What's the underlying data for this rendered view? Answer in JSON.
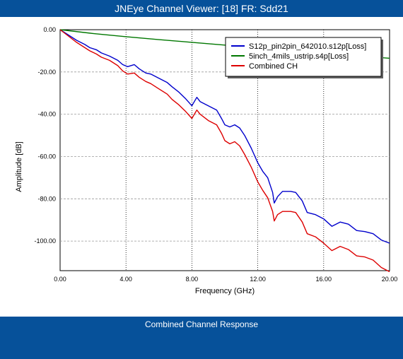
{
  "window": {
    "title": "JNEye Channel Viewer: [18] FR: Sdd21"
  },
  "footer": {
    "label": "Combined Channel Response"
  },
  "colors": {
    "bar_background": "#06519a",
    "bar_text": "#ffffff"
  },
  "chart_data": {
    "type": "line",
    "title": "",
    "xlabel": "Frequency (GHz)",
    "ylabel": "Amplitude [dB]",
    "xlim": [
      0,
      20
    ],
    "ylim": [
      -114,
      0
    ],
    "x_ticks": [
      0,
      4,
      8,
      12,
      16,
      20
    ],
    "x_tick_labels": [
      "0.00",
      "4.00",
      "8.00",
      "12.00",
      "16.00",
      "20.00"
    ],
    "y_ticks": [
      0,
      -20,
      -40,
      -60,
      -80,
      -100
    ],
    "y_tick_labels": [
      "0.00",
      "-20.00",
      "-40.00",
      "-60.00",
      "-80.00",
      "-100.00"
    ],
    "grid": {
      "vertical": "dotted",
      "horizontal": "dashed"
    },
    "legend_position": "top-right",
    "series": [
      {
        "name": "S12p_pin2pin_642010.s12p[Loss]",
        "color": "#0000cc",
        "x": [
          0,
          0.5,
          1,
          1.5,
          1.8,
          2.2,
          2.5,
          3,
          3.5,
          3.8,
          4.1,
          4.5,
          4.8,
          5.2,
          5.5,
          6,
          6.5,
          6.8,
          7.2,
          7.6,
          8,
          8.3,
          8.5,
          9,
          9.5,
          9.8,
          10,
          10.3,
          10.6,
          10.9,
          11.2,
          11.6,
          12,
          12.3,
          12.6,
          12.9,
          13,
          13.2,
          13.5,
          14,
          14.3,
          14.7,
          15,
          15.5,
          16,
          16.5,
          17,
          17.5,
          18,
          18.5,
          19,
          19.5,
          20
        ],
        "y": [
          0,
          -2.5,
          -5,
          -7,
          -8.5,
          -9.5,
          -11,
          -12.5,
          -14.5,
          -16.5,
          -17.5,
          -16.5,
          -18.5,
          -20.5,
          -21,
          -23,
          -25,
          -27,
          -29.5,
          -32.5,
          -36,
          -32,
          -34,
          -36,
          -38,
          -42,
          -45,
          -46,
          -45,
          -46.5,
          -50,
          -56,
          -63,
          -67,
          -70,
          -77,
          -82,
          -79,
          -76.5,
          -76.5,
          -77,
          -81,
          -86.5,
          -87.5,
          -89.5,
          -93,
          -91,
          -92,
          -95,
          -95.5,
          -96.5,
          -99.5,
          -101
        ]
      },
      {
        "name": "5inch_4mils_ustrip.s4p[Loss]",
        "color": "#007700",
        "x": [
          0,
          2,
          4,
          6,
          8,
          10,
          12,
          14,
          16,
          18,
          20
        ],
        "y": [
          0,
          -1.8,
          -3.3,
          -4.7,
          -6,
          -7.3,
          -8.6,
          -9.9,
          -11.2,
          -12.4,
          -13.5
        ]
      },
      {
        "name": "Combined CH",
        "color": "#dd0000",
        "x": [
          0,
          0.5,
          1,
          1.5,
          1.8,
          2.2,
          2.5,
          3,
          3.5,
          3.8,
          4.1,
          4.5,
          4.8,
          5.2,
          5.5,
          6,
          6.5,
          6.8,
          7.2,
          7.6,
          8,
          8.3,
          8.5,
          9,
          9.5,
          9.8,
          10,
          10.3,
          10.6,
          10.9,
          11.2,
          11.6,
          12,
          12.3,
          12.6,
          12.9,
          13,
          13.2,
          13.5,
          14,
          14.3,
          14.7,
          15,
          15.5,
          16,
          16.5,
          17,
          17.5,
          18,
          18.5,
          19,
          19.5,
          20
        ],
        "y": [
          0,
          -3,
          -6,
          -8.5,
          -10,
          -11.5,
          -13,
          -14.5,
          -17,
          -19.5,
          -21,
          -20.5,
          -22.5,
          -24.5,
          -25.5,
          -28,
          -30.5,
          -33,
          -35.5,
          -38.5,
          -42,
          -38,
          -40,
          -43,
          -45,
          -49,
          -52.5,
          -54,
          -53,
          -55,
          -59,
          -65,
          -72,
          -76,
          -79.5,
          -86,
          -90.5,
          -87.5,
          -86,
          -86,
          -86.5,
          -91,
          -96.5,
          -98,
          -101,
          -104.5,
          -102.5,
          -104,
          -107,
          -107.5,
          -109,
          -112.5,
          -114.5
        ]
      }
    ]
  }
}
